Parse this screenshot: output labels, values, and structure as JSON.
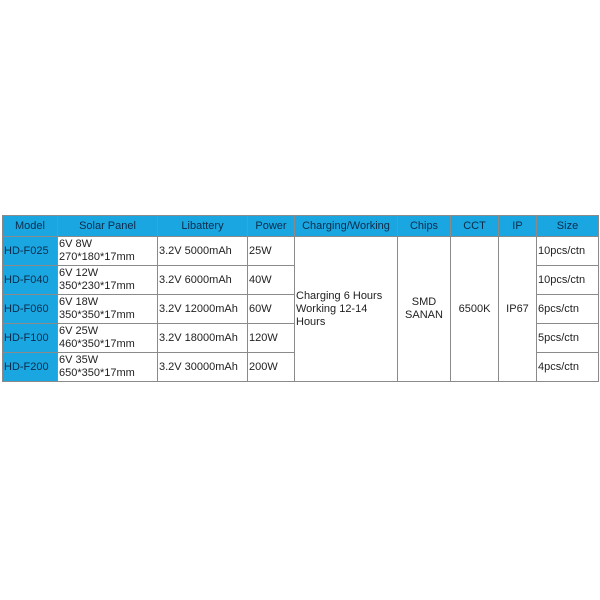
{
  "colors": {
    "header_bg": "#1aa6e0",
    "border": "#8a8a8a"
  },
  "headers": [
    "Model",
    "Solar Panel",
    "Libattery",
    "Power",
    "Charging/Working",
    "Chips",
    "CCT",
    "IP",
    "Size"
  ],
  "rows": [
    {
      "model": "HD-F025",
      "panel_power": "6V 8W",
      "panel_size": "270*180*17mm",
      "battery": "3.2V 5000mAh",
      "power": "25W",
      "size": "10pcs/ctn"
    },
    {
      "model": "HD-F040",
      "panel_power": "6V 12W",
      "panel_size": "350*230*17mm",
      "battery": "3.2V 6000mAh",
      "power": "40W",
      "size": "10pcs/ctn"
    },
    {
      "model": "HD-F060",
      "panel_power": "6V 18W",
      "panel_size": "350*350*17mm",
      "battery": "3.2V 12000mAh",
      "power": "60W",
      "size": "6pcs/ctn"
    },
    {
      "model": "HD-F100",
      "panel_power": "6V 25W",
      "panel_size": "460*350*17mm",
      "battery": "3.2V 18000mAh",
      "power": "120W",
      "size": "5pcs/ctn"
    },
    {
      "model": "HD-F200",
      "panel_power": "6V 35W",
      "panel_size": "650*350*17mm",
      "battery": "3.2V 30000mAh",
      "power": "200W",
      "size": "4pcs/ctn"
    }
  ],
  "shared": {
    "charging": "Charging 6 Hours Working 12-14 Hours",
    "chips": "SMD SANAN",
    "cct": "6500K",
    "ip": "IP67"
  }
}
